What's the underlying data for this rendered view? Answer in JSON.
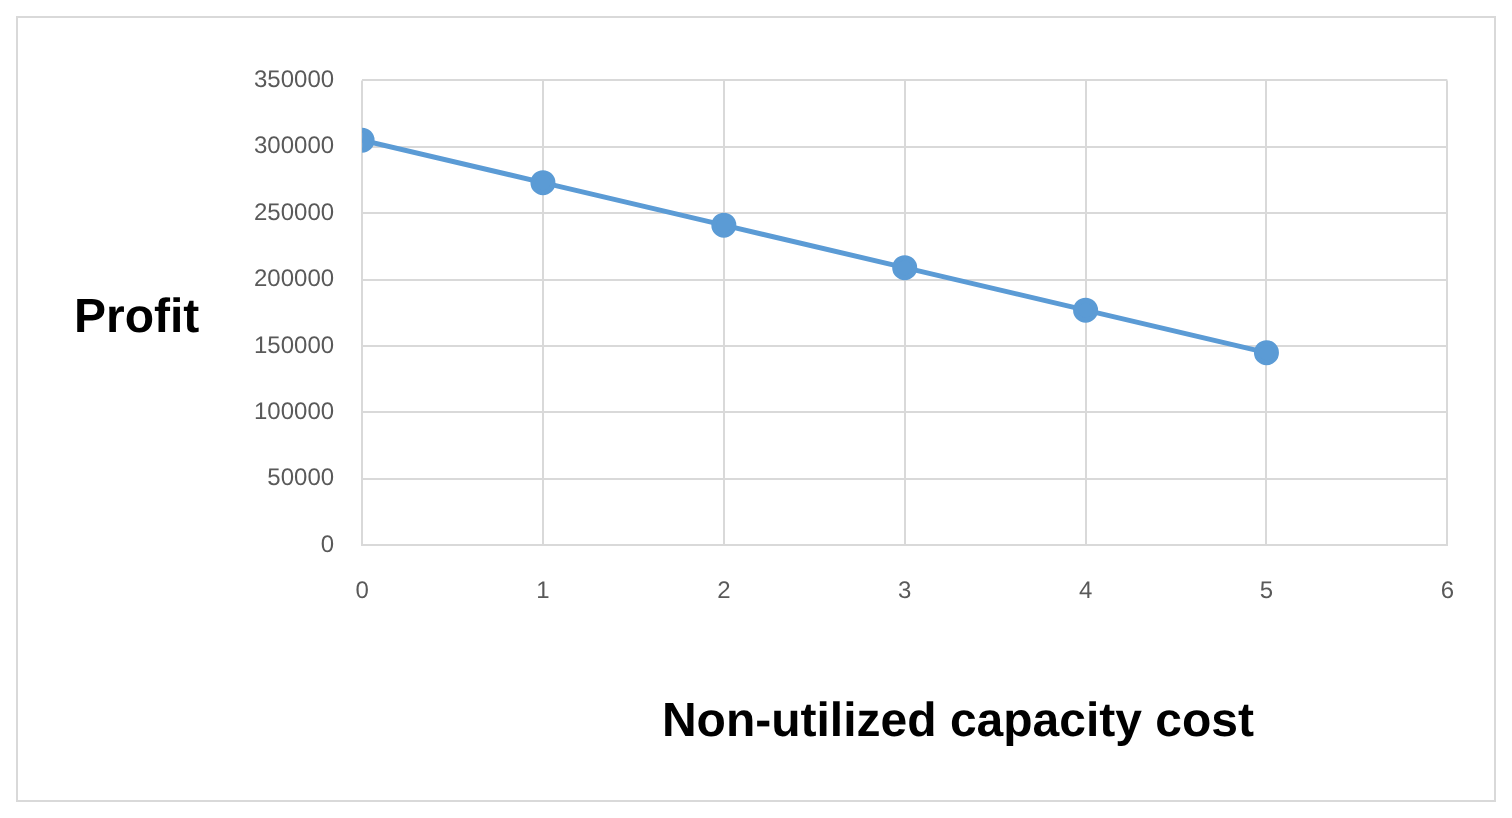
{
  "chart_data": {
    "type": "line",
    "xlabel": "Non-utilized capacity cost",
    "ylabel": "Profit",
    "x": [
      0,
      1,
      2,
      3,
      4,
      5
    ],
    "series": [
      {
        "color": "#5b9bd5",
        "values": [
          305000,
          273000,
          241000,
          209000,
          177000,
          145000
        ]
      }
    ],
    "xlim": [
      0,
      6
    ],
    "xticks": [
      0,
      1,
      2,
      3,
      4,
      5,
      6
    ],
    "ylim": [
      0,
      350000
    ],
    "yticks": [
      0,
      50000,
      100000,
      150000,
      200000,
      250000,
      300000,
      350000
    ],
    "grid": true,
    "legend": false,
    "marker": "circle",
    "line_style": "solid"
  }
}
